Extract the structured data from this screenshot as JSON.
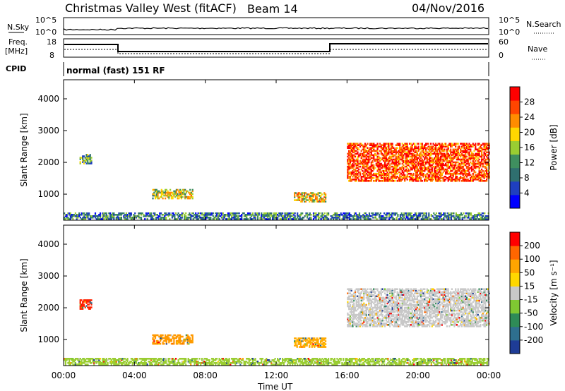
{
  "header": {
    "station": "Christmas Valley West (fitACF)",
    "beam": "Beam 14",
    "date": "04/Nov/2016"
  },
  "status_panels": {
    "nsky_label": "N.Sky",
    "nsky_ticks": [
      "10^5",
      "10^0"
    ],
    "nsearch_label": "N.Search",
    "nsearch_ticks": [
      "10^5",
      "10^0"
    ],
    "freq_label_line1": "Freq.",
    "freq_label_line2": "[MHz]",
    "freq_ticks": [
      "18",
      "8"
    ],
    "nave_label": "Nave",
    "nave_ticks": [
      "60",
      "0"
    ],
    "cpid_label": "CPID",
    "cpid_value": "normal (fast) 151 RF"
  },
  "chart_data": [
    {
      "type": "heatmap",
      "panel": "power",
      "ylabel": "Slant Range [km]",
      "xlabel": "Time UT",
      "x_ticks": [
        "00:00",
        "04:00",
        "08:00",
        "12:00",
        "16:00",
        "20:00",
        "00:00"
      ],
      "x_hours": [
        0,
        4,
        8,
        12,
        16,
        20,
        24
      ],
      "y_ticks": [
        1000,
        2000,
        3000,
        4000
      ],
      "ylim": [
        180,
        4600
      ],
      "colorbar_label": "Power [dB]",
      "colorbar_ticks": [
        "28",
        "24",
        "20",
        "16",
        "12",
        "8",
        "4"
      ],
      "colorbar_colors": [
        "#0000ff",
        "#1f3fbf",
        "#2f6f6f",
        "#3f8f5f",
        "#9acd32",
        "#ffd700",
        "#ff8c00",
        "#ff4500",
        "#ff0000"
      ],
      "regions": [
        {
          "t0": 0.9,
          "t1": 1.6,
          "r0": 1950,
          "r1": 2250,
          "level": 0.35
        },
        {
          "t0": 5.0,
          "t1": 7.3,
          "r0": 850,
          "r1": 1150,
          "level": 0.55
        },
        {
          "t0": 13.0,
          "t1": 14.8,
          "r0": 750,
          "r1": 1050,
          "level": 0.6
        },
        {
          "t0": 16.0,
          "t1": 24.0,
          "r0": 1400,
          "r1": 2600,
          "level": 0.85
        },
        {
          "t0": 0.0,
          "t1": 24.0,
          "r0": 200,
          "r1": 400,
          "level": 0.3
        }
      ]
    },
    {
      "type": "heatmap",
      "panel": "velocity",
      "ylabel": "Slant Range [km]",
      "xlabel": "Time UT",
      "x_ticks": [
        "00:00",
        "04:00",
        "08:00",
        "12:00",
        "16:00",
        "20:00",
        "00:00"
      ],
      "x_hours": [
        0,
        4,
        8,
        12,
        16,
        20,
        24
      ],
      "y_ticks": [
        1000,
        2000,
        3000,
        4000
      ],
      "ylim": [
        180,
        4600
      ],
      "colorbar_label": "Velocity [m s⁻¹]",
      "colorbar_ticks": [
        "200",
        "100",
        "50",
        "15",
        "-15",
        "-50",
        "-100",
        "-200"
      ],
      "colorbar_colors": [
        "#1e3c96",
        "#2e6f8f",
        "#2e8b57",
        "#7fc832",
        "#c8c8c8",
        "#ffd700",
        "#ffa500",
        "#ff6600",
        "#ff0000"
      ],
      "regions": [
        {
          "t0": 0.9,
          "t1": 1.6,
          "r0": 1950,
          "r1": 2250,
          "color": "#ff2200"
        },
        {
          "t0": 5.0,
          "t1": 7.3,
          "r0": 850,
          "r1": 1150,
          "color": "#ff9900"
        },
        {
          "t0": 13.0,
          "t1": 14.8,
          "r0": 750,
          "r1": 1050,
          "color": "#ffaa00"
        },
        {
          "t0": 16.0,
          "t1": 24.0,
          "r0": 1400,
          "r1": 2600,
          "color": "#c8c8c8"
        },
        {
          "t0": 0.0,
          "t1": 24.0,
          "r0": 200,
          "r1": 400,
          "color": "#9acd32"
        }
      ]
    }
  ]
}
